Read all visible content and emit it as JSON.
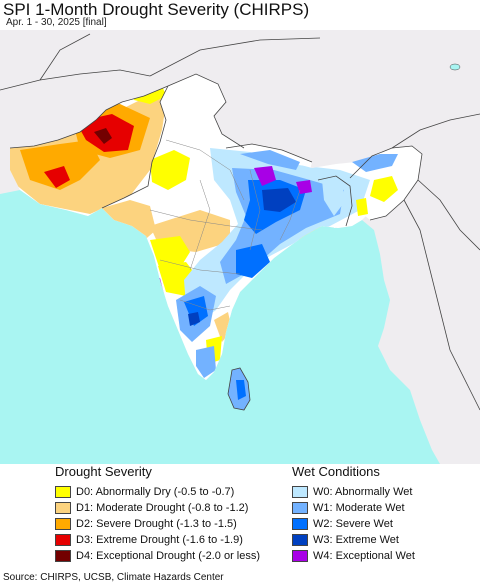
{
  "title": "SPI 1-Month Drought Severity (CHIRPS)",
  "subtitle": "Apr. 1 - 30, 2025 [final]",
  "source": "Source: CHIRPS, UCSB, Climate Hazards Center",
  "colors": {
    "ocean": "#a9f5f2",
    "land_outside": "#efedf0",
    "land_normal": "#ffffff",
    "borders": "#444444"
  },
  "legend": {
    "drought": {
      "title": "Drought Severity",
      "items": [
        {
          "label": "D0: Abnormally Dry (-0.5 to -0.7)",
          "color": "#ffff00"
        },
        {
          "label": "D1: Moderate Drought (-0.8 to -1.2)",
          "color": "#fcd37f"
        },
        {
          "label": "D2: Severe Drought (-1.3 to -1.5)",
          "color": "#ffaa00"
        },
        {
          "label": "D3: Extreme Drought (-1.6 to -1.9)",
          "color": "#e60000"
        },
        {
          "label": "D4: Exceptional Drought (-2.0 or less)",
          "color": "#730000"
        }
      ]
    },
    "wet": {
      "title": "Wet Conditions",
      "items": [
        {
          "label": "W0: Abnormally Wet",
          "color": "#bee8ff"
        },
        {
          "label": "W1: Moderate Wet",
          "color": "#73b2ff"
        },
        {
          "label": "W2: Severe Wet",
          "color": "#0070ff"
        },
        {
          "label": "W3: Extreme Wet",
          "color": "#0040c0"
        },
        {
          "label": "W4: Exceptional Wet",
          "color": "#a800e6"
        }
      ]
    }
  }
}
